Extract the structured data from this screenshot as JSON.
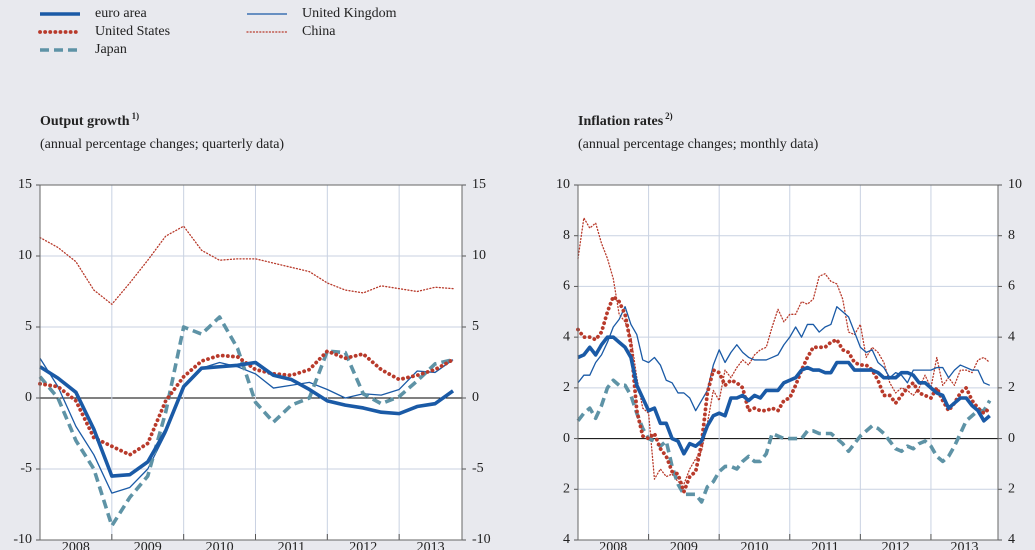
{
  "chart_data": [
    {
      "type": "line",
      "title": "Output growth",
      "title_note": "1)",
      "subtitle": "(annual percentage changes; quarterly data)",
      "categories": [
        "2008",
        "2009",
        "2010",
        "2011",
        "2012",
        "2013"
      ],
      "x": [
        2008,
        2008.25,
        2008.5,
        2008.75,
        2009,
        2009.25,
        2009.5,
        2009.75,
        2010,
        2010.25,
        2010.5,
        2010.75,
        2011,
        2011.25,
        2011.5,
        2011.75,
        2012,
        2012.25,
        2012.5,
        2012.75,
        2013,
        2013.25,
        2013.5,
        2013.75
      ],
      "xlim": [
        2008,
        2013.875
      ],
      "xticks": [
        2009,
        2010,
        2011,
        2012,
        2013
      ],
      "ylim": [
        -10,
        15
      ],
      "yticks": [
        -10,
        -5,
        0,
        5,
        10,
        15
      ],
      "grid": true,
      "series": [
        {
          "name": "euro area",
          "color": "#1a5aa6",
          "line_style": "solid",
          "line_width": "thick",
          "values": [
            2.2,
            1.4,
            0.4,
            -2.2,
            -5.5,
            -5.4,
            -4.5,
            -2.3,
            0.8,
            2.1,
            2.2,
            2.3,
            2.5,
            1.6,
            1.3,
            0.6,
            -0.2,
            -0.5,
            -0.7,
            -1.0,
            -1.1,
            -0.6,
            -0.4,
            0.5
          ]
        },
        {
          "name": "United States",
          "color": "#b83a2b",
          "line_style": "dotted",
          "line_width": "thick",
          "values": [
            1.0,
            0.8,
            -0.2,
            -2.8,
            -3.4,
            -4.0,
            -3.2,
            -0.2,
            1.5,
            2.6,
            3.0,
            2.9,
            2.0,
            1.7,
            1.6,
            2.0,
            3.3,
            2.8,
            3.1,
            2.0,
            1.3,
            1.6,
            2.0,
            2.7
          ]
        },
        {
          "name": "Japan",
          "color": "#5e93a6",
          "line_style": "dashed",
          "line_width": "thick",
          "values": [
            1.5,
            0.0,
            -3.0,
            -5.0,
            -9.0,
            -7.0,
            -5.5,
            -1.0,
            5.0,
            4.5,
            5.7,
            3.5,
            -0.3,
            -1.7,
            -0.5,
            0.0,
            3.3,
            3.2,
            0.3,
            -0.4,
            0.1,
            1.2,
            2.4,
            2.7
          ]
        },
        {
          "name": "United Kingdom",
          "color": "#1a5aa6",
          "line_style": "solid",
          "line_width": "thin",
          "values": [
            2.8,
            0.8,
            -2.0,
            -4.0,
            -6.7,
            -6.3,
            -5.0,
            -2.5,
            0.8,
            2.1,
            2.5,
            2.2,
            1.7,
            0.7,
            0.9,
            1.1,
            0.6,
            0.0,
            0.3,
            0.2,
            0.6,
            1.9,
            1.8,
            2.7
          ]
        },
        {
          "name": "China",
          "color": "#b83a2b",
          "line_style": "dotted",
          "line_width": "thin",
          "values": [
            11.3,
            10.6,
            9.6,
            7.6,
            6.6,
            8.1,
            9.7,
            11.4,
            12.1,
            10.4,
            9.7,
            9.8,
            9.8,
            9.5,
            9.2,
            8.9,
            8.1,
            7.6,
            7.4,
            7.9,
            7.7,
            7.5,
            7.8,
            7.7
          ]
        }
      ]
    },
    {
      "type": "line",
      "title": "Inflation rates",
      "title_note": "2)",
      "subtitle": "(annual percentage changes; monthly data)",
      "categories": [
        "2008",
        "2009",
        "2010",
        "2011",
        "2012",
        "2013"
      ],
      "x": [
        2008,
        2008.083,
        2008.167,
        2008.25,
        2008.333,
        2008.417,
        2008.5,
        2008.583,
        2008.667,
        2008.75,
        2008.833,
        2008.917,
        2009,
        2009.083,
        2009.167,
        2009.25,
        2009.333,
        2009.417,
        2009.5,
        2009.583,
        2009.667,
        2009.75,
        2009.833,
        2009.917,
        2010,
        2010.083,
        2010.167,
        2010.25,
        2010.333,
        2010.417,
        2010.5,
        2010.583,
        2010.667,
        2010.75,
        2010.833,
        2010.917,
        2011,
        2011.083,
        2011.167,
        2011.25,
        2011.333,
        2011.417,
        2011.5,
        2011.583,
        2011.667,
        2011.75,
        2011.833,
        2011.917,
        2012,
        2012.083,
        2012.167,
        2012.25,
        2012.333,
        2012.417,
        2012.5,
        2012.583,
        2012.667,
        2012.75,
        2012.833,
        2012.917,
        2013,
        2013.083,
        2013.167,
        2013.25,
        2013.333,
        2013.417,
        2013.5,
        2013.583,
        2013.667,
        2013.75,
        2013.833
      ],
      "xlim": [
        2008,
        2013.95
      ],
      "xticks": [
        2009,
        2010,
        2011,
        2012,
        2013
      ],
      "ylim": [
        -4,
        10
      ],
      "yticks": [
        {
          "value": -4,
          "label": "4"
        },
        {
          "value": -2,
          "label": "2"
        },
        0,
        2,
        4,
        6,
        8,
        10
      ],
      "grid": true,
      "series": [
        {
          "name": "euro area",
          "color": "#1a5aa6",
          "line_style": "solid",
          "line_width": "thick",
          "values": [
            3.2,
            3.3,
            3.6,
            3.3,
            3.7,
            4.0,
            4.0,
            3.8,
            3.6,
            3.2,
            2.1,
            1.6,
            1.1,
            1.2,
            0.6,
            0.6,
            0.0,
            -0.1,
            -0.6,
            -0.2,
            -0.3,
            -0.1,
            0.5,
            0.9,
            1.0,
            0.9,
            1.6,
            1.6,
            1.7,
            1.5,
            1.7,
            1.6,
            1.9,
            1.9,
            1.9,
            2.2,
            2.3,
            2.4,
            2.7,
            2.8,
            2.7,
            2.7,
            2.6,
            2.6,
            3.0,
            3.0,
            3.0,
            2.7,
            2.7,
            2.7,
            2.7,
            2.6,
            2.4,
            2.4,
            2.4,
            2.6,
            2.6,
            2.5,
            2.2,
            2.2,
            2.0,
            1.8,
            1.7,
            1.2,
            1.4,
            1.6,
            1.6,
            1.3,
            1.1,
            0.7,
            0.9
          ]
        },
        {
          "name": "United States",
          "color": "#b83a2b",
          "line_style": "dotted",
          "line_width": "thick",
          "values": [
            4.3,
            4.0,
            4.0,
            3.9,
            4.2,
            5.0,
            5.6,
            5.4,
            4.9,
            3.7,
            1.1,
            0.1,
            0.0,
            0.2,
            -0.4,
            -0.7,
            -1.3,
            -1.4,
            -2.1,
            -1.5,
            -1.3,
            -0.2,
            1.8,
            2.7,
            2.6,
            2.1,
            2.3,
            2.2,
            2.0,
            1.1,
            1.2,
            1.1,
            1.1,
            1.2,
            1.1,
            1.5,
            1.6,
            2.1,
            2.7,
            3.2,
            3.6,
            3.6,
            3.6,
            3.8,
            3.9,
            3.5,
            3.4,
            3.0,
            2.9,
            2.9,
            2.7,
            2.3,
            1.7,
            1.7,
            1.4,
            1.7,
            2.0,
            2.2,
            1.8,
            1.7,
            1.6,
            2.0,
            1.5,
            1.1,
            1.4,
            1.8,
            2.0,
            1.5,
            1.2,
            1.0,
            1.2
          ]
        },
        {
          "name": "Japan",
          "color": "#5e93a6",
          "line_style": "dashed",
          "line_width": "thick",
          "values": [
            0.7,
            1.0,
            1.2,
            0.8,
            1.3,
            2.0,
            2.3,
            2.1,
            2.1,
            1.7,
            1.0,
            0.4,
            0.0,
            -0.1,
            -0.3,
            -0.1,
            -1.1,
            -1.8,
            -2.2,
            -2.2,
            -2.2,
            -2.5,
            -1.9,
            -1.7,
            -1.3,
            -1.1,
            -1.1,
            -1.2,
            -0.9,
            -0.7,
            -0.9,
            -0.9,
            -0.6,
            0.2,
            0.1,
            0.0,
            0.0,
            0.0,
            0.0,
            0.3,
            0.3,
            0.2,
            0.2,
            0.2,
            0.0,
            -0.2,
            -0.5,
            -0.2,
            0.1,
            0.3,
            0.5,
            0.4,
            0.2,
            -0.1,
            -0.4,
            -0.5,
            -0.3,
            -0.4,
            -0.2,
            -0.1,
            -0.3,
            -0.7,
            -0.9,
            -0.7,
            -0.3,
            0.2,
            0.7,
            0.9,
            1.1,
            1.1,
            1.5
          ]
        },
        {
          "name": "United Kingdom",
          "color": "#1a5aa6",
          "line_style": "solid",
          "line_width": "thin",
          "values": [
            2.2,
            2.5,
            2.5,
            3.0,
            3.3,
            3.8,
            4.4,
            4.7,
            5.2,
            4.5,
            4.1,
            3.1,
            3.0,
            3.2,
            2.9,
            2.3,
            2.2,
            1.8,
            1.8,
            1.6,
            1.1,
            1.5,
            1.9,
            2.9,
            3.5,
            3.0,
            3.4,
            3.7,
            3.4,
            3.2,
            3.1,
            3.1,
            3.1,
            3.2,
            3.3,
            3.7,
            4.0,
            4.4,
            4.0,
            4.5,
            4.5,
            4.2,
            4.4,
            4.5,
            5.2,
            5.0,
            4.8,
            4.2,
            3.6,
            3.4,
            3.5,
            3.0,
            2.8,
            2.4,
            2.6,
            2.5,
            2.2,
            2.7,
            2.7,
            2.7,
            2.7,
            2.8,
            2.8,
            2.4,
            2.7,
            2.9,
            2.8,
            2.7,
            2.7,
            2.2,
            2.1
          ]
        },
        {
          "name": "China",
          "color": "#b83a2b",
          "line_style": "dotted",
          "line_width": "thin",
          "values": [
            7.1,
            8.7,
            8.3,
            8.5,
            7.7,
            7.1,
            6.3,
            4.9,
            4.6,
            4.0,
            2.4,
            1.2,
            1.0,
            -1.6,
            -1.2,
            -1.5,
            -1.4,
            -1.7,
            -1.8,
            -1.2,
            -0.8,
            -0.5,
            0.6,
            1.9,
            1.5,
            2.7,
            2.4,
            2.8,
            3.1,
            2.9,
            3.3,
            3.5,
            3.6,
            4.4,
            5.1,
            4.6,
            4.9,
            4.9,
            5.4,
            5.3,
            5.5,
            6.4,
            6.5,
            6.2,
            6.1,
            5.5,
            4.2,
            4.1,
            4.5,
            3.2,
            3.6,
            3.4,
            3.0,
            2.2,
            1.8,
            2.0,
            1.9,
            1.7,
            2.0,
            2.5,
            2.0,
            3.2,
            2.1,
            2.4,
            2.1,
            2.7,
            2.7,
            2.6,
            3.1,
            3.2,
            3.0
          ]
        }
      ]
    }
  ]
}
